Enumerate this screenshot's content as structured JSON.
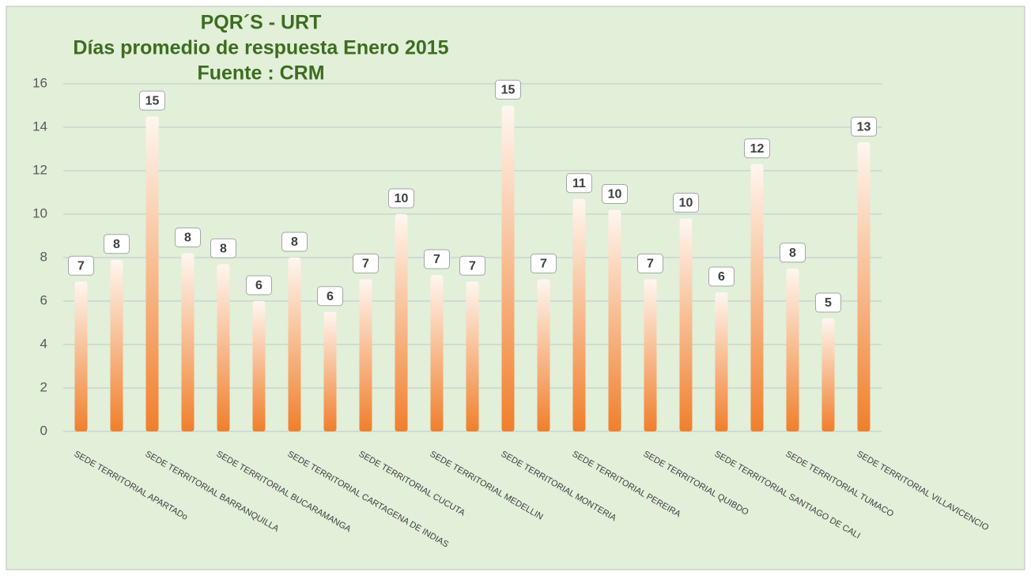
{
  "chart_data": {
    "type": "bar",
    "title": [
      "PQR´S - URT",
      "Días promedio de respuesta Enero 2015",
      "Fuente : CRM"
    ],
    "categories": [
      "SEDE TERRITORIAL APARTADo",
      null,
      "SEDE TERRITORIAL BARRANQUILLA",
      null,
      "SEDE TERRITORIAL BUCARAMANGA",
      null,
      "SEDE TERRITORIAL CARTAGENA DE INDIAS",
      null,
      "SEDE TERRITORIAL CUCUTA",
      null,
      "SEDE TERRITORIAL MEDELLIN",
      null,
      "SEDE TERRITORIAL MONTERIA",
      null,
      "SEDE TERRITORIAL PEREIRA",
      null,
      "SEDE TERRITORIAL QUIBDO",
      null,
      "SEDE TERRITORIAL SANTIAGO DE CALI",
      null,
      "SEDE TERRITORIAL TUMACO",
      null,
      "SEDE TERRITORIAL VILLAVICENCIO"
    ],
    "values": [
      6.9,
      7.9,
      14.5,
      8.2,
      7.7,
      6.0,
      8.0,
      5.5,
      7.0,
      10.0,
      7.2,
      6.9,
      15.0,
      7.0,
      10.7,
      10.2,
      7.0,
      9.8,
      6.4,
      12.3,
      7.5,
      5.2,
      13.3
    ],
    "value_labels": [
      "7",
      "8",
      "15",
      "8",
      "8",
      "6",
      "8",
      "6",
      "7",
      "10",
      "7",
      "7",
      "15",
      "7",
      "11",
      "10",
      "7",
      "10",
      "6",
      "12",
      "8",
      "5",
      "13"
    ],
    "color": "#f07f2c",
    "ylim": [
      0,
      16
    ],
    "yticks": [
      0,
      2,
      4,
      6,
      8,
      10,
      12,
      14,
      16
    ],
    "grid": true
  }
}
